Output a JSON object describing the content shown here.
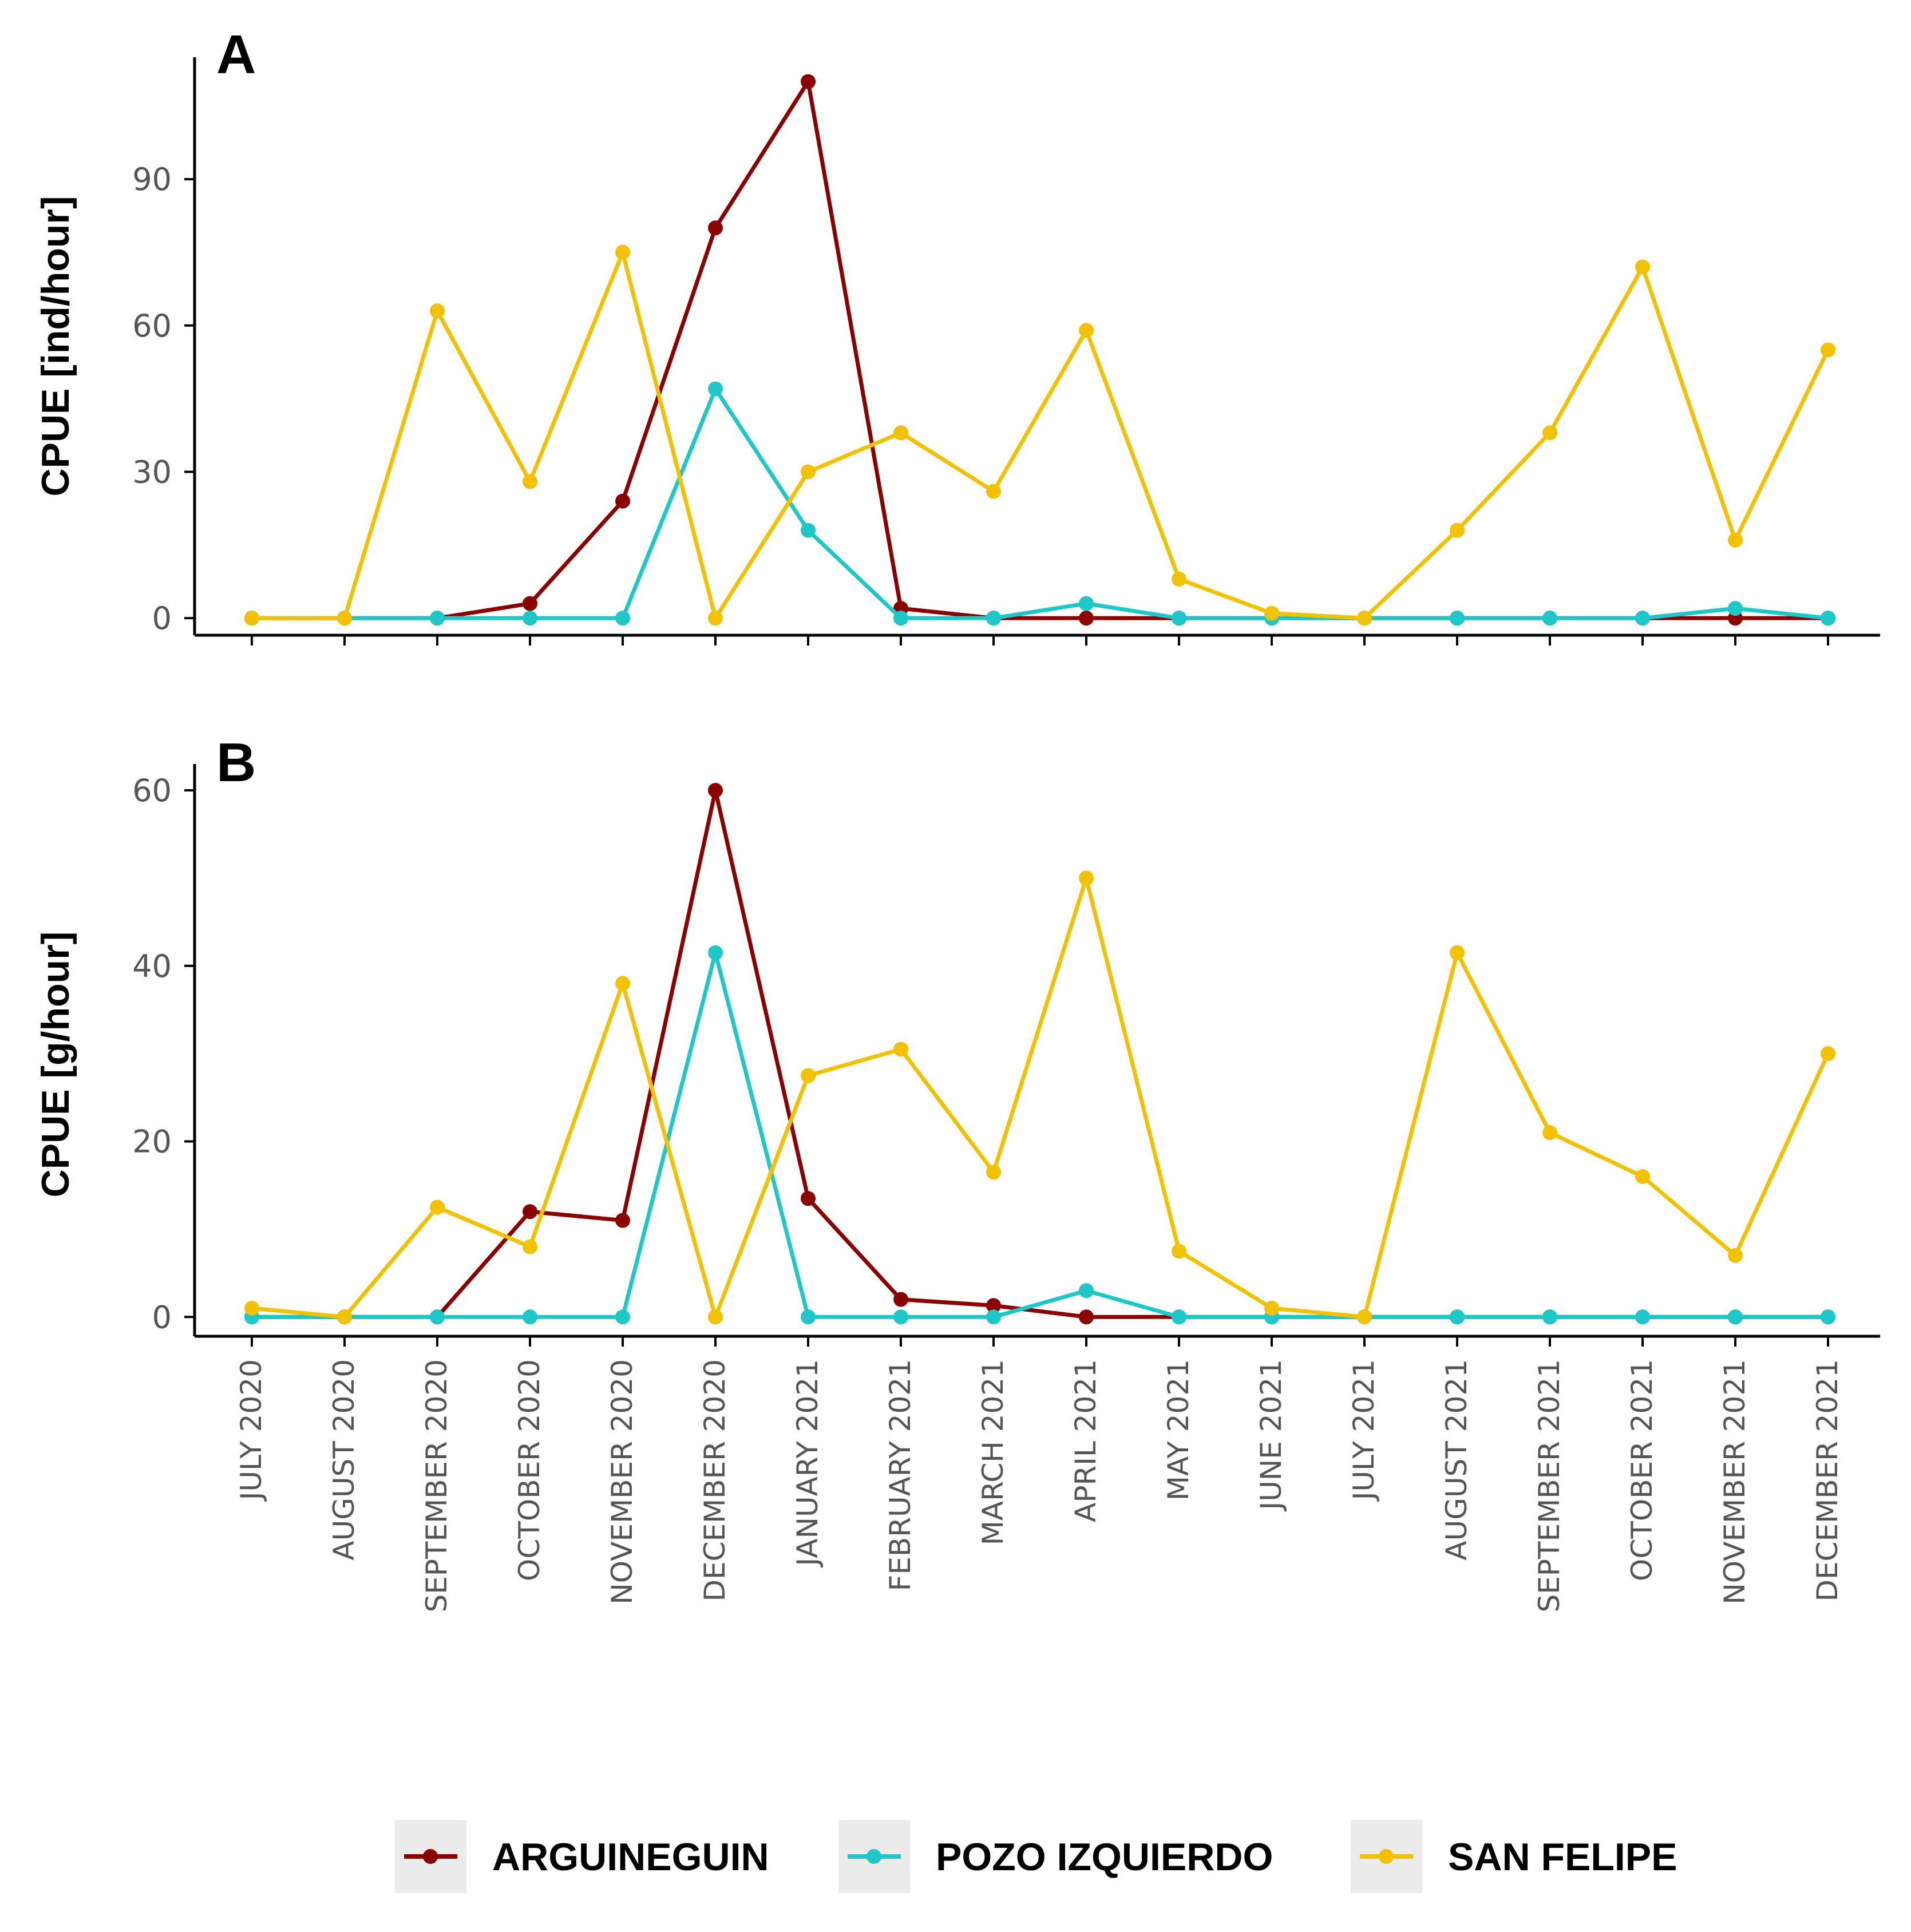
{
  "chart_data": [
    {
      "type": "line",
      "panel": "A",
      "title": "",
      "xlabel": "",
      "ylabel": "CPUE [ind/hour]",
      "ylim": [
        -3.5,
        115
      ],
      "yticks": [
        0,
        30,
        60,
        90
      ],
      "categories": [
        "JULY 2020",
        "AUGUST 2020",
        "SEPTEMBER 2020",
        "OCTOBER 2020",
        "NOVEMBER 2020",
        "DECEMBER 2020",
        "JANUARY 2021",
        "FEBRUARY 2021",
        "MARCH 2021",
        "APRIL 2021",
        "MAY 2021",
        "JUNE 2021",
        "JULY 2021",
        "AUGUST 2021",
        "SEPTEMBER 2021",
        "OCTOBER 2021",
        "NOVEMBER 2021",
        "DECEMBER 2021"
      ],
      "series": [
        {
          "name": "ARGUINEGUIN",
          "values": [
            0,
            0,
            0,
            3,
            24,
            80,
            110,
            2,
            0,
            0,
            0,
            0,
            0,
            0,
            0,
            0,
            0,
            0
          ]
        },
        {
          "name": "POZO IZQUIERDO",
          "values": [
            0,
            0,
            0,
            0,
            0,
            47,
            18,
            0,
            0,
            3,
            0,
            0,
            0,
            0,
            0,
            0,
            2,
            0
          ]
        },
        {
          "name": "SAN FELIPE",
          "values": [
            0,
            0,
            63,
            28,
            75,
            0,
            30,
            38,
            26,
            59,
            8,
            1,
            0,
            18,
            38,
            72,
            16,
            55
          ]
        }
      ]
    },
    {
      "type": "line",
      "panel": "B",
      "title": "",
      "xlabel": "",
      "ylabel": "CPUE [g/hour]",
      "ylim": [
        -2.2,
        63
      ],
      "yticks": [
        0,
        20,
        40,
        60
      ],
      "categories": [
        "JULY 2020",
        "AUGUST 2020",
        "SEPTEMBER 2020",
        "OCTOBER 2020",
        "NOVEMBER 2020",
        "DECEMBER 2020",
        "JANUARY 2021",
        "FEBRUARY 2021",
        "MARCH 2021",
        "APRIL 2021",
        "MAY 2021",
        "JUNE 2021",
        "JULY 2021",
        "AUGUST 2021",
        "SEPTEMBER 2021",
        "OCTOBER 2021",
        "NOVEMBER 2021",
        "DECEMBER 2021"
      ],
      "series": [
        {
          "name": "ARGUINEGUIN",
          "values": [
            0,
            0,
            0,
            12,
            11,
            60,
            13.5,
            2,
            1.3,
            0,
            0,
            0,
            0,
            0,
            0,
            0,
            0,
            0
          ]
        },
        {
          "name": "POZO IZQUIERDO",
          "values": [
            0,
            0,
            0,
            0,
            0,
            41.5,
            0,
            0,
            0,
            3,
            0,
            0,
            0,
            0,
            0,
            0,
            0,
            0
          ]
        },
        {
          "name": "SAN FELIPE",
          "values": [
            1,
            0,
            12.5,
            8,
            38,
            0,
            27.5,
            30.5,
            16.5,
            50,
            7.5,
            1,
            0,
            41.5,
            21,
            16,
            7,
            30
          ]
        }
      ]
    }
  ],
  "legend": {
    "position": "bottom",
    "items": [
      {
        "label": "ARGUINEGUIN",
        "color": "#8B0000"
      },
      {
        "label": "POZO IZQUIERDO",
        "color": "#1FC8C8"
      },
      {
        "label": "SAN FELIPE",
        "color": "#F2C200"
      }
    ]
  }
}
